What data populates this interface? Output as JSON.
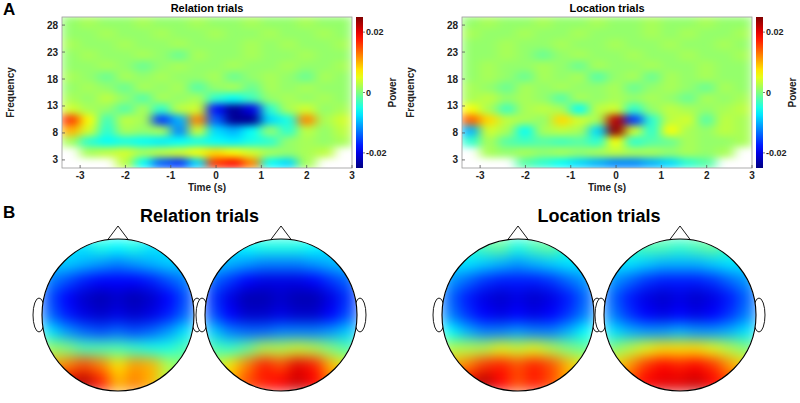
{
  "panel_labels": [
    "A",
    "B"
  ],
  "chart_data": [
    {
      "type": "heatmap",
      "title": "Relation trials",
      "x_label": "Time (s)",
      "y_label": "Frequency",
      "xlim": [
        -3.4,
        3
      ],
      "xticks": [
        -3,
        -2,
        -1,
        0,
        1,
        2,
        3
      ],
      "ylim": [
        1.5,
        29.5
      ],
      "yticks": [
        3,
        8,
        13,
        18,
        23,
        28
      ],
      "x": [
        -3.2,
        -2.8,
        -2.4,
        -2.0,
        -1.6,
        -1.2,
        -0.8,
        -0.4,
        0.0,
        0.4,
        0.8,
        1.2,
        1.6,
        2.0,
        2.4,
        2.8
      ],
      "y": [
        2.5,
        4.5,
        6.5,
        8.5,
        10.5,
        12.5,
        14.5,
        16.5,
        18.5,
        20.5,
        22.5,
        24.5,
        26.5,
        28.5
      ],
      "cells": [
        [
          null,
          null,
          null,
          0.003,
          -0.006,
          -0.014,
          -0.016,
          -0.008,
          0.016,
          0.018,
          0.012,
          -0.006,
          -0.008,
          0.002,
          null,
          null
        ],
        [
          null,
          0.002,
          0.003,
          0.004,
          0.002,
          0.003,
          0.004,
          0.006,
          0.008,
          0.006,
          0.004,
          0.002,
          0.001,
          0.002,
          0.003,
          null
        ],
        [
          0.002,
          -0.004,
          -0.006,
          -0.005,
          -0.006,
          -0.007,
          -0.006,
          -0.005,
          -0.006,
          -0.007,
          -0.005,
          -0.004,
          0.001,
          0.002,
          0.001,
          0.002
        ],
        [
          0.01,
          0.004,
          -0.004,
          0.002,
          0.001,
          0.002,
          -0.012,
          0.004,
          -0.008,
          -0.01,
          -0.006,
          0.001,
          -0.004,
          0.003,
          0.001,
          0.003
        ],
        [
          0.016,
          0.006,
          -0.003,
          0.003,
          0.002,
          -0.016,
          -0.01,
          0.012,
          -0.014,
          -0.024,
          -0.024,
          -0.008,
          -0.005,
          0.012,
          0.002,
          0.004
        ],
        [
          0.004,
          0.002,
          0.001,
          -0.002,
          0.002,
          -0.004,
          0.003,
          0.004,
          -0.018,
          -0.024,
          -0.02,
          -0.004,
          0.002,
          0.004,
          0.001,
          0.002
        ],
        [
          0.002,
          0.001,
          0.003,
          0.001,
          -0.002,
          0.002,
          0.001,
          0.002,
          -0.004,
          -0.006,
          -0.003,
          0.001,
          0.002,
          0.001,
          0.002,
          0.001
        ],
        [
          0.001,
          0.002,
          0.001,
          -0.001,
          0.002,
          0.001,
          0.002,
          -0.002,
          0.001,
          0.002,
          -0.001,
          0.002,
          0.001,
          0.002,
          0.001,
          0.001
        ],
        [
          0.002,
          0.001,
          -0.001,
          0.002,
          0.001,
          0.002,
          0.001,
          0.001,
          0.002,
          -0.001,
          0.001,
          0.002,
          0.001,
          -0.001,
          0.002,
          0.001
        ],
        [
          0.001,
          0.001,
          0.002,
          0.001,
          -0.001,
          0.001,
          0.002,
          0.001,
          0.001,
          0.002,
          0.001,
          0.001,
          0.002,
          0.001,
          0.001,
          0.002
        ],
        [
          0.001,
          0.002,
          0.001,
          0.001,
          0.002,
          0.001,
          -0.001,
          0.002,
          0.001,
          0.001,
          0.002,
          0.001,
          0.001,
          0.002,
          0.001,
          0.001
        ],
        [
          0.002,
          0.001,
          0.001,
          0.002,
          0.001,
          0.001,
          0.002,
          0.001,
          0.001,
          0.001,
          0.002,
          0.001,
          0.002,
          0.001,
          0.001,
          0.002
        ],
        [
          0.001,
          0.001,
          0.002,
          0.001,
          0.001,
          0.002,
          0.001,
          0.001,
          0.002,
          0.001,
          0.001,
          0.002,
          0.001,
          0.001,
          0.002,
          0.001
        ],
        [
          0.001,
          0.002,
          0.001,
          0.001,
          0.002,
          0.001,
          0.001,
          0.002,
          0.001,
          0.001,
          0.002,
          0.001,
          0.001,
          0.002,
          0.001,
          0.001
        ]
      ],
      "colorbar": {
        "label": "Power",
        "range": [
          -0.025,
          0.025
        ],
        "ticks": [
          -0.02,
          0,
          0.02
        ]
      }
    },
    {
      "type": "heatmap",
      "title": "Location trials",
      "x_label": "Time (s)",
      "y_label": "Frequency",
      "xlim": [
        -3.4,
        3
      ],
      "xticks": [
        -3,
        -2,
        -1,
        0,
        1,
        2,
        3
      ],
      "ylim": [
        1.5,
        29.5
      ],
      "yticks": [
        3,
        8,
        13,
        18,
        23,
        28
      ],
      "x": [
        -3.2,
        -2.8,
        -2.4,
        -2.0,
        -1.6,
        -1.2,
        -0.8,
        -0.4,
        0.0,
        0.4,
        0.8,
        1.2,
        1.6,
        2.0,
        2.4,
        2.8
      ],
      "y": [
        2.5,
        4.5,
        6.5,
        8.5,
        10.5,
        12.5,
        14.5,
        16.5,
        18.5,
        20.5,
        22.5,
        24.5,
        26.5,
        28.5
      ],
      "cells": [
        [
          null,
          null,
          null,
          -0.002,
          -0.004,
          -0.006,
          -0.008,
          -0.01,
          -0.012,
          -0.012,
          -0.01,
          -0.008,
          -0.004,
          -0.002,
          null,
          null
        ],
        [
          null,
          0.002,
          0.001,
          0.002,
          0.001,
          0.002,
          0.001,
          0.002,
          0.003,
          0.002,
          0.002,
          0.001,
          0.002,
          0.001,
          0.002,
          null
        ],
        [
          -0.004,
          0.002,
          -0.002,
          -0.003,
          -0.002,
          -0.003,
          -0.002,
          -0.004,
          0.006,
          -0.004,
          -0.002,
          -0.001,
          0.002,
          0.001,
          0.001,
          0.002
        ],
        [
          -0.01,
          0.004,
          0.002,
          -0.006,
          0.002,
          0.003,
          0.002,
          -0.008,
          0.024,
          0.004,
          -0.004,
          0.006,
          0.002,
          0.001,
          0.003,
          0.002
        ],
        [
          0.014,
          0.008,
          0.003,
          0.002,
          0.001,
          0.008,
          0.004,
          0.002,
          0.022,
          -0.016,
          -0.004,
          0.003,
          0.004,
          -0.002,
          0.003,
          0.002
        ],
        [
          0.006,
          0.002,
          -0.003,
          0.002,
          0.003,
          0.002,
          -0.006,
          0.003,
          0.004,
          -0.004,
          0.001,
          0.003,
          0.002,
          0.001,
          0.002,
          0.003
        ],
        [
          0.002,
          0.003,
          0.001,
          0.002,
          0.001,
          -0.002,
          0.002,
          0.001,
          0.002,
          0.001,
          0.002,
          0.001,
          -0.001,
          0.002,
          0.001,
          0.002
        ],
        [
          0.002,
          0.001,
          -0.001,
          0.002,
          0.001,
          0.002,
          0.001,
          0.001,
          0.002,
          -0.001,
          0.001,
          0.002,
          0.001,
          -0.001,
          0.002,
          0.001
        ],
        [
          0.001,
          0.002,
          0.001,
          -0.001,
          0.002,
          0.001,
          0.002,
          -0.002,
          0.001,
          0.002,
          -0.001,
          0.002,
          0.001,
          0.002,
          0.001,
          0.001
        ],
        [
          0.001,
          0.002,
          0.001,
          0.001,
          0.002,
          0.001,
          -0.001,
          0.002,
          0.001,
          0.001,
          0.002,
          0.001,
          0.001,
          0.002,
          0.001,
          0.001
        ],
        [
          0.001,
          0.001,
          0.002,
          0.001,
          -0.001,
          0.001,
          0.002,
          0.001,
          0.001,
          0.002,
          0.001,
          0.001,
          0.002,
          0.001,
          0.001,
          0.002
        ],
        [
          0.001,
          0.001,
          0.002,
          0.001,
          0.001,
          0.002,
          0.001,
          0.001,
          0.002,
          0.001,
          0.001,
          0.002,
          0.001,
          0.001,
          0.002,
          0.001
        ],
        [
          0.002,
          0.001,
          0.001,
          0.002,
          0.001,
          0.001,
          0.002,
          0.001,
          0.001,
          0.001,
          0.002,
          0.001,
          0.002,
          0.001,
          0.001,
          0.002
        ],
        [
          0.001,
          0.002,
          0.001,
          0.001,
          0.002,
          0.001,
          0.001,
          0.002,
          0.001,
          0.001,
          0.002,
          0.001,
          0.001,
          0.002,
          0.001,
          0.001
        ]
      ],
      "colorbar": {
        "label": "Power",
        "range": [
          -0.025,
          0.025
        ],
        "ticks": [
          -0.02,
          0,
          0.02
        ]
      }
    },
    {
      "type": "topomap",
      "title": "Relation trials",
      "color_range": [
        -1,
        1
      ],
      "maps": [
        {
          "cells": [
            [
              -0.3,
              -0.3,
              -0.3,
              -0.2,
              -0.25,
              -0.2,
              -0.3,
              -0.3,
              -0.3
            ],
            [
              -0.35,
              -0.35,
              -0.4,
              -0.45,
              -0.5,
              -0.45,
              -0.4,
              -0.35,
              -0.35
            ],
            [
              -0.5,
              -0.6,
              -0.7,
              -0.75,
              -0.75,
              -0.75,
              -0.7,
              -0.6,
              -0.5
            ],
            [
              -0.6,
              -0.75,
              -0.85,
              -0.9,
              -0.85,
              -0.9,
              -0.85,
              -0.75,
              -0.6
            ],
            [
              -0.55,
              -0.7,
              -0.8,
              -0.85,
              -0.8,
              -0.85,
              -0.8,
              -0.7,
              -0.55
            ],
            [
              -0.3,
              -0.45,
              -0.55,
              -0.6,
              -0.55,
              -0.6,
              -0.55,
              -0.45,
              -0.3
            ],
            [
              0.05,
              0.0,
              -0.1,
              -0.1,
              -0.1,
              -0.15,
              -0.2,
              -0.2,
              -0.1
            ],
            [
              0.4,
              0.5,
              0.6,
              0.5,
              0.3,
              0.45,
              0.4,
              0.1,
              0.0
            ],
            [
              0.7,
              0.8,
              0.9,
              0.7,
              0.4,
              0.5,
              0.4,
              0.1,
              0.0
            ]
          ]
        },
        {
          "cells": [
            [
              -0.3,
              -0.3,
              -0.25,
              -0.2,
              -0.2,
              -0.2,
              -0.25,
              -0.3,
              -0.3
            ],
            [
              -0.35,
              -0.4,
              -0.45,
              -0.5,
              -0.5,
              -0.5,
              -0.45,
              -0.4,
              -0.35
            ],
            [
              -0.55,
              -0.65,
              -0.75,
              -0.8,
              -0.8,
              -0.8,
              -0.75,
              -0.65,
              -0.55
            ],
            [
              -0.65,
              -0.8,
              -0.9,
              -0.9,
              -0.85,
              -0.9,
              -0.9,
              -0.8,
              -0.65
            ],
            [
              -0.6,
              -0.75,
              -0.85,
              -0.85,
              -0.8,
              -0.85,
              -0.85,
              -0.75,
              -0.6
            ],
            [
              -0.35,
              -0.5,
              -0.55,
              -0.55,
              -0.5,
              -0.5,
              -0.5,
              -0.45,
              -0.35
            ],
            [
              -0.1,
              -0.15,
              -0.05,
              0.1,
              0.1,
              0.15,
              0.1,
              0.0,
              -0.1
            ],
            [
              0.1,
              0.3,
              0.5,
              0.7,
              0.6,
              0.8,
              0.7,
              0.4,
              0.2
            ],
            [
              0.2,
              0.4,
              0.6,
              0.7,
              0.75,
              0.85,
              0.75,
              0.5,
              0.3
            ]
          ]
        }
      ]
    },
    {
      "type": "topomap",
      "title": "Location trials",
      "color_range": [
        -1,
        1
      ],
      "maps": [
        {
          "cells": [
            [
              -0.2,
              -0.2,
              -0.1,
              -0.05,
              -0.2,
              -0.1,
              -0.05,
              -0.2,
              -0.2
            ],
            [
              -0.3,
              -0.3,
              -0.35,
              -0.4,
              -0.45,
              -0.4,
              -0.35,
              -0.3,
              -0.3
            ],
            [
              -0.45,
              -0.55,
              -0.65,
              -0.7,
              -0.7,
              -0.7,
              -0.65,
              -0.55,
              -0.45
            ],
            [
              -0.55,
              -0.7,
              -0.8,
              -0.85,
              -0.8,
              -0.85,
              -0.8,
              -0.7,
              -0.55
            ],
            [
              -0.5,
              -0.65,
              -0.75,
              -0.8,
              -0.75,
              -0.8,
              -0.75,
              -0.65,
              -0.5
            ],
            [
              -0.25,
              -0.4,
              -0.5,
              -0.5,
              -0.45,
              -0.5,
              -0.5,
              -0.4,
              -0.25
            ],
            [
              0.1,
              0.1,
              0.1,
              0.2,
              0.15,
              0.2,
              0.1,
              0.0,
              -0.05
            ],
            [
              0.4,
              0.5,
              0.65,
              0.7,
              0.6,
              0.7,
              0.6,
              0.4,
              0.2
            ],
            [
              0.6,
              0.75,
              0.9,
              0.75,
              0.6,
              0.7,
              0.6,
              0.4,
              0.2
            ]
          ]
        },
        {
          "cells": [
            [
              -0.2,
              -0.15,
              -0.1,
              -0.1,
              -0.15,
              -0.1,
              -0.05,
              -0.15,
              -0.2
            ],
            [
              -0.3,
              -0.3,
              -0.35,
              -0.4,
              -0.4,
              -0.4,
              -0.35,
              -0.3,
              -0.3
            ],
            [
              -0.45,
              -0.55,
              -0.65,
              -0.7,
              -0.7,
              -0.7,
              -0.65,
              -0.55,
              -0.45
            ],
            [
              -0.55,
              -0.7,
              -0.8,
              -0.85,
              -0.8,
              -0.85,
              -0.8,
              -0.7,
              -0.55
            ],
            [
              -0.5,
              -0.65,
              -0.75,
              -0.8,
              -0.75,
              -0.8,
              -0.75,
              -0.65,
              -0.5
            ],
            [
              -0.3,
              -0.4,
              -0.45,
              -0.45,
              -0.4,
              -0.45,
              -0.45,
              -0.4,
              -0.3
            ],
            [
              0.0,
              0.1,
              0.2,
              0.3,
              0.3,
              0.3,
              0.2,
              0.1,
              0.0
            ],
            [
              0.3,
              0.45,
              0.65,
              0.75,
              0.7,
              0.75,
              0.65,
              0.45,
              0.3
            ],
            [
              0.4,
              0.6,
              0.75,
              0.8,
              0.8,
              0.85,
              0.75,
              0.6,
              0.4
            ]
          ]
        }
      ]
    }
  ]
}
